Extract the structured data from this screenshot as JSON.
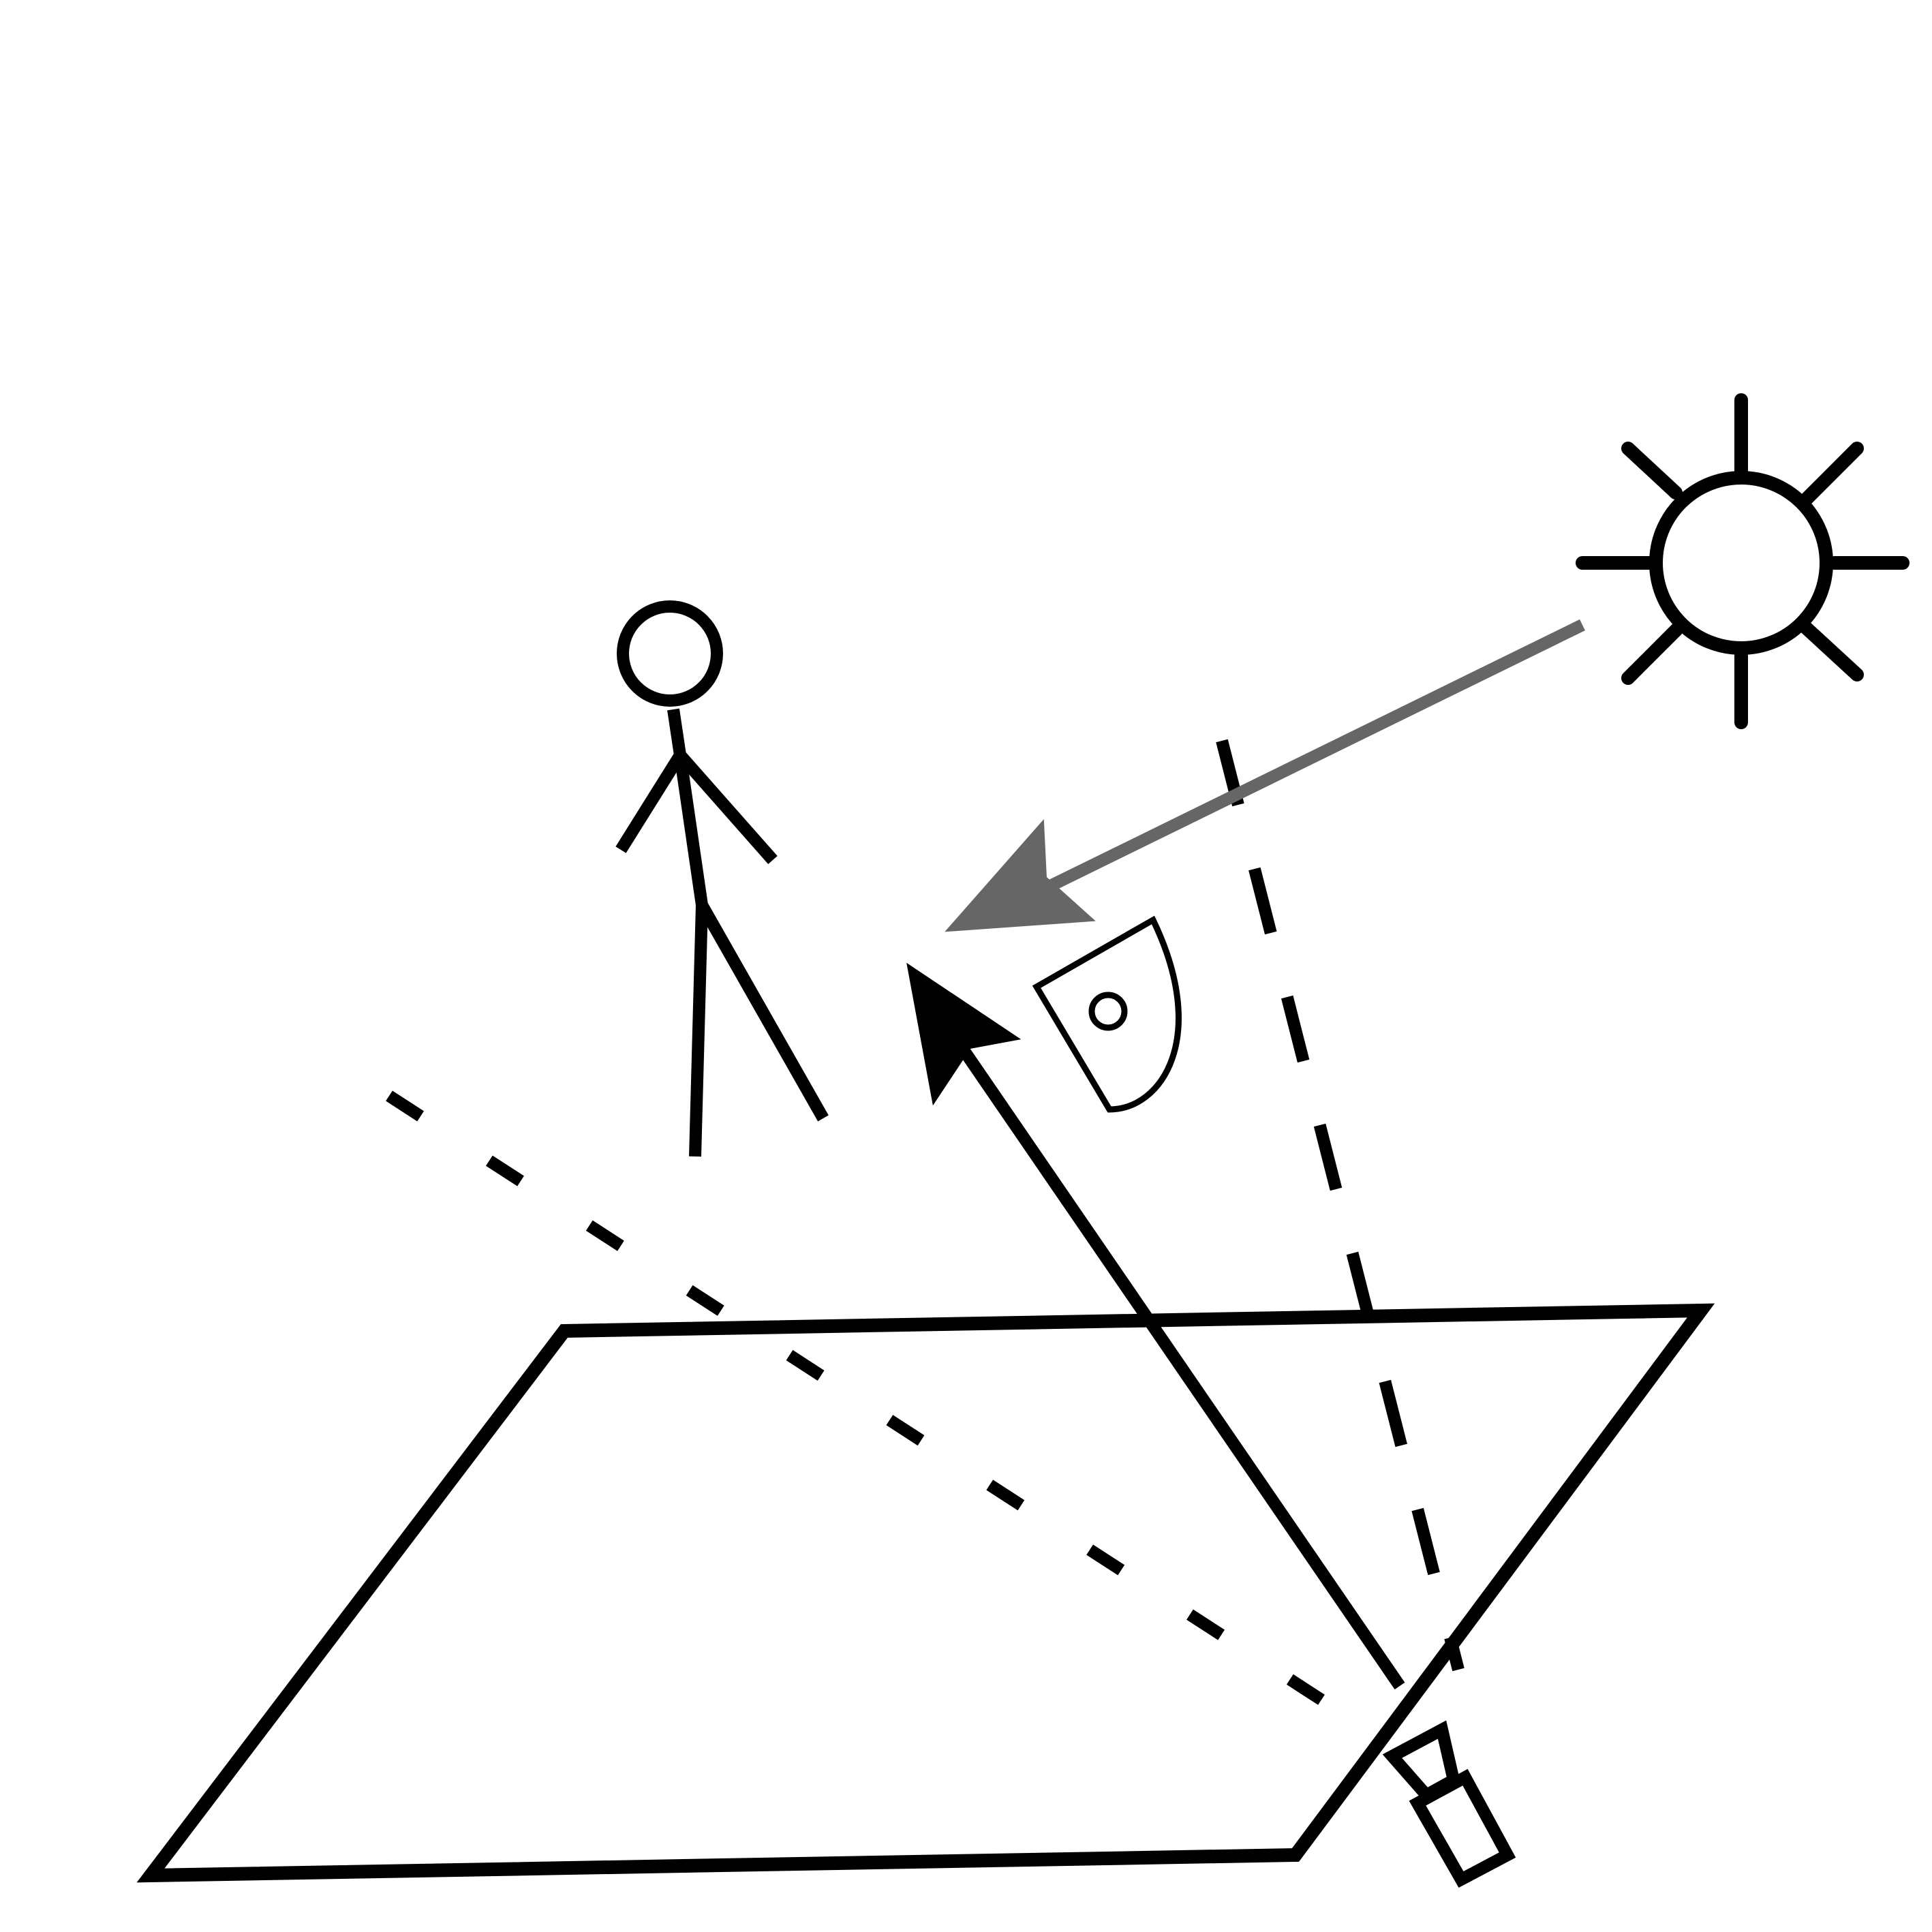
{
  "diagram": {
    "elements": [
      {
        "name": "ground-plane",
        "kind": "parallelogram"
      },
      {
        "name": "person-figure",
        "kind": "stick-figure"
      },
      {
        "name": "sun-icon",
        "kind": "sun"
      },
      {
        "name": "light-ray-arrow",
        "kind": "arrow",
        "style": "solid"
      },
      {
        "name": "reflection-arrow",
        "kind": "arrow",
        "style": "solid"
      },
      {
        "name": "sight-line-to-person",
        "kind": "line",
        "style": "dashed"
      },
      {
        "name": "sight-line-to-sun",
        "kind": "line",
        "style": "dashed"
      },
      {
        "name": "light-meter-icon",
        "kind": "device"
      },
      {
        "name": "camera-icon",
        "kind": "camera"
      }
    ],
    "colors": {
      "stroke": "#000000",
      "light_ray": "#666666",
      "background": "#ffffff"
    }
  }
}
